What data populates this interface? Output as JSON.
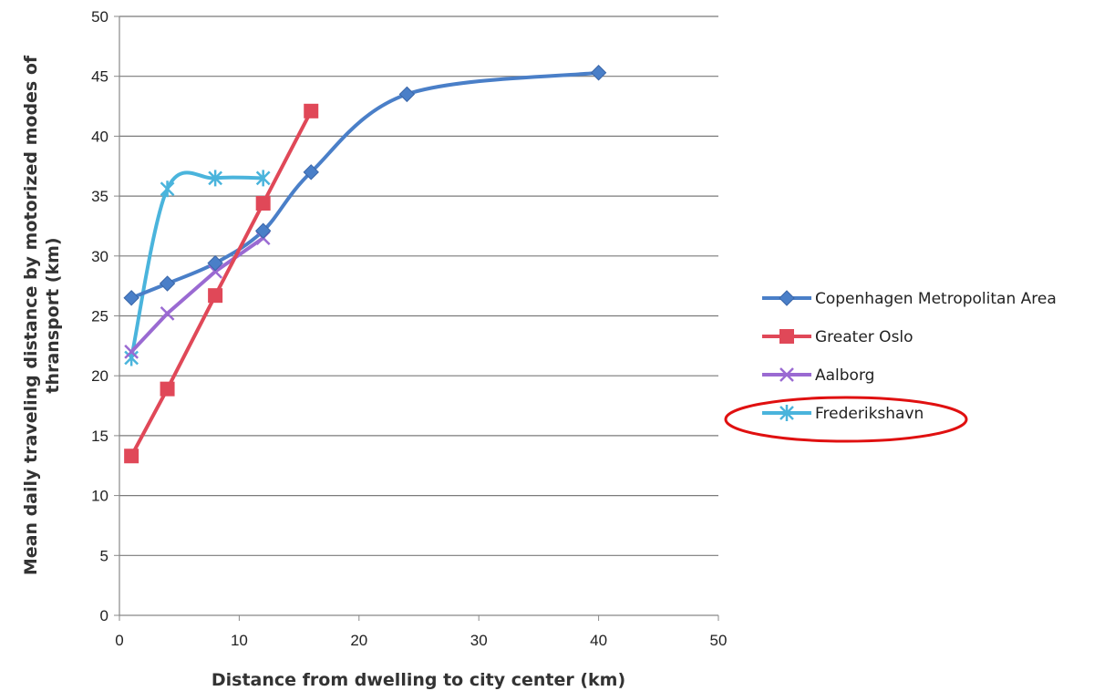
{
  "chart_data": {
    "type": "line",
    "xlabel": "Distance from dwelling to city center (km)",
    "ylabel_line1": "Mean daily traveling distance by motorized modes of",
    "ylabel_line2": "thransport (km)",
    "xlim": [
      0,
      50
    ],
    "ylim": [
      0,
      50
    ],
    "x_ticks": [
      0,
      10,
      20,
      30,
      40,
      50
    ],
    "y_ticks": [
      0,
      5,
      10,
      15,
      20,
      25,
      30,
      35,
      40,
      45,
      50
    ],
    "grid": "horizontal",
    "legend_position": "right",
    "series": [
      {
        "name": "Copenhagen Metropolitan Area",
        "color": "#4a7fc8",
        "marker": "diamond",
        "x": [
          1,
          4,
          8,
          12,
          16,
          24,
          40
        ],
        "y": [
          26.5,
          27.7,
          29.4,
          32.1,
          37.0,
          43.5,
          45.3
        ]
      },
      {
        "name": "Greater Oslo",
        "color": "#e04858",
        "marker": "square",
        "x": [
          1,
          4,
          8,
          12,
          16
        ],
        "y": [
          13.3,
          18.9,
          26.7,
          34.4,
          42.1
        ]
      },
      {
        "name": "Aalborg",
        "color": "#9a6ad2",
        "marker": "x",
        "x": [
          1,
          4,
          8,
          12
        ],
        "y": [
          22.0,
          25.2,
          28.7,
          31.5
        ]
      },
      {
        "name": "Frederikshavn",
        "color": "#4ab4dc",
        "marker": "star",
        "x": [
          1,
          4,
          8,
          12
        ],
        "y": [
          21.5,
          35.6,
          36.5,
          36.5
        ]
      }
    ],
    "annotation": {
      "type": "ellipse",
      "target": "Frederikshavn",
      "color": "#e01010"
    }
  }
}
